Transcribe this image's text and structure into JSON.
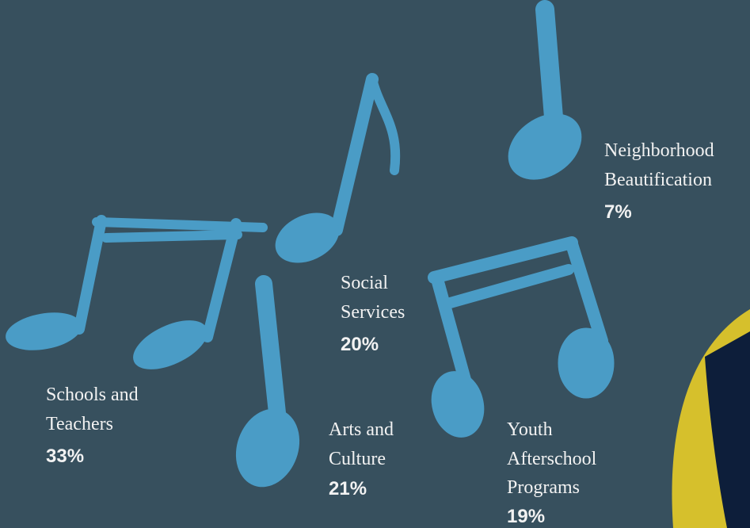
{
  "items": [
    {
      "label": [
        "Neighborhood",
        "Beautification"
      ],
      "value": "7%"
    },
    {
      "label": [
        "Social",
        "Services"
      ],
      "value": "20%"
    },
    {
      "label": [
        "Schools and",
        "Teachers"
      ],
      "value": "33%"
    },
    {
      "label": [
        "Arts and",
        "Culture"
      ],
      "value": "21%"
    },
    {
      "label": [
        "Youth",
        "Afterschool",
        "Programs"
      ],
      "value": "19%"
    }
  ]
}
